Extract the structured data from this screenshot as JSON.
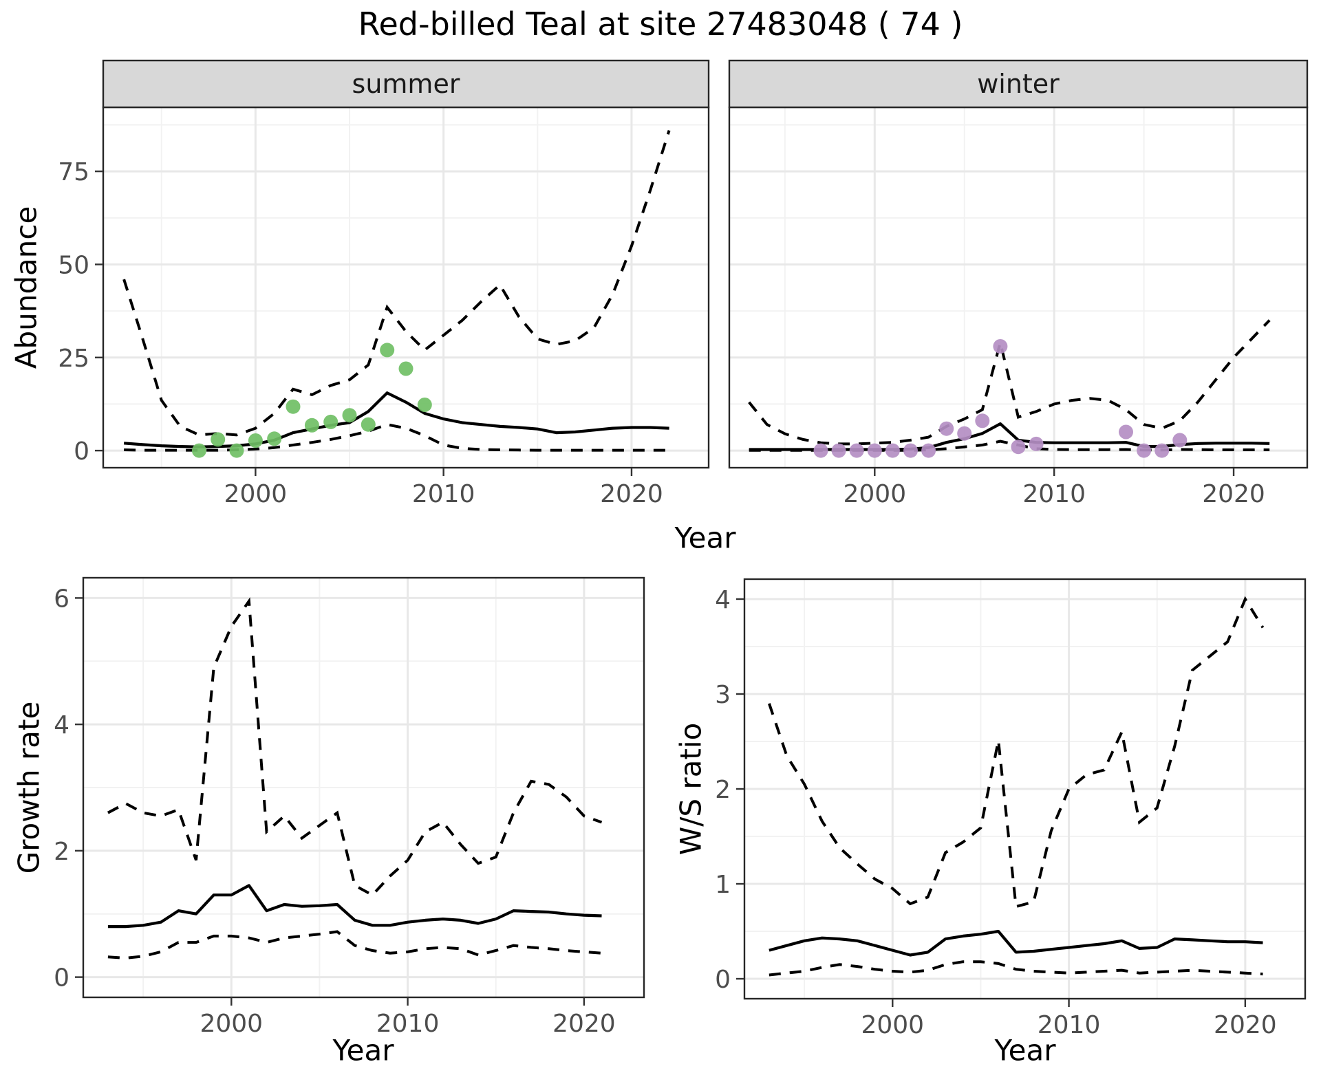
{
  "labels": {
    "title": "Red-billed Teal at site 27483048 ( 74 )",
    "x_axis": "Year",
    "y_abundance": "Abundance",
    "y_growth": "Growth rate",
    "y_ws": "W/S ratio",
    "facet_summer": "summer",
    "facet_winter": "winter"
  },
  "colors": {
    "observed_summer": "#70BF65",
    "observed_winter": "#B48EC3",
    "line": "#000000",
    "grid_major": "#E8E8E8",
    "grid_minor": "#F2F2F2",
    "strip_fill": "#D8D8D8",
    "panel_border": "#262626",
    "tick_text": "#4D4D4D",
    "strip_text": "#1A1A1A"
  },
  "chart_data": [
    {
      "id": "abundance_by_season",
      "type": "line",
      "title": "Red-billed Teal at site 27483048 ( 74 )",
      "xlabel": "Year",
      "ylabel": "Abundance",
      "x_ticks": [
        2000,
        2010,
        2020
      ],
      "x_minor": [
        1995,
        2005,
        2015
      ],
      "y_ticks": [
        0,
        25,
        50,
        75
      ],
      "y_minor": [
        12.5,
        37.5,
        62.5,
        87.5
      ],
      "xlim": [
        1991.9,
        2024.1
      ],
      "ylim": [
        -4.6,
        92.2
      ],
      "grid": true,
      "legend_position": "none",
      "years": [
        1993,
        1994,
        1995,
        1996,
        1997,
        1998,
        1999,
        2000,
        2001,
        2002,
        2003,
        2004,
        2005,
        2006,
        2007,
        2008,
        2009,
        2010,
        2011,
        2012,
        2013,
        2014,
        2015,
        2016,
        2017,
        2018,
        2019,
        2020,
        2021,
        2022
      ],
      "facets": [
        {
          "label": "summer",
          "point_color": "#70BF65",
          "mean": [
            2.0,
            1.6,
            1.3,
            1.1,
            1.0,
            1.1,
            1.3,
            1.8,
            2.8,
            4.8,
            5.8,
            6.8,
            7.5,
            10.5,
            15.5,
            13.0,
            10.0,
            8.5,
            7.5,
            7.0,
            6.5,
            6.2,
            5.8,
            4.8,
            5.0,
            5.5,
            6.0,
            6.2,
            6.2,
            6.0
          ],
          "upper": [
            46,
            30,
            13.5,
            6.5,
            4.2,
            4.6,
            4.2,
            6.0,
            10.0,
            16.5,
            15.0,
            17.5,
            19.0,
            23.0,
            38.5,
            32.0,
            27.0,
            31.0,
            35.0,
            40.0,
            44.5,
            36.0,
            30.0,
            28.5,
            29.5,
            33.0,
            42.0,
            55.0,
            70.0,
            86.0
          ],
          "lower": [
            0.2,
            0.1,
            0.1,
            0.1,
            0.1,
            0.1,
            0.2,
            0.4,
            0.8,
            1.5,
            2.2,
            3.0,
            4.0,
            5.2,
            7.0,
            6.0,
            4.0,
            1.5,
            0.6,
            0.3,
            0.2,
            0.15,
            0.1,
            0.1,
            0.1,
            0.1,
            0.1,
            0.1,
            0.1,
            0.1
          ],
          "obs_years": [
            1997,
            1998,
            1999,
            2000,
            2001,
            2002,
            2003,
            2004,
            2005,
            2006,
            2007,
            2008,
            2009
          ],
          "obs_values": [
            0,
            3.0,
            0,
            2.7,
            3.2,
            11.8,
            6.8,
            7.7,
            9.5,
            7.0,
            27.0,
            22.0,
            12.3
          ]
        },
        {
          "label": "winter",
          "point_color": "#B48EC3",
          "mean": [
            0.3,
            0.3,
            0.3,
            0.3,
            0.3,
            0.3,
            0.3,
            0.3,
            0.3,
            0.4,
            0.8,
            2.2,
            3.2,
            4.6,
            7.2,
            2.8,
            2.2,
            2.1,
            2.1,
            2.1,
            2.1,
            2.2,
            1.1,
            1.1,
            1.6,
            1.9,
            2.0,
            2.0,
            2.0,
            1.9
          ],
          "upper": [
            13,
            7,
            4.5,
            3.0,
            2.1,
            1.8,
            1.8,
            2.0,
            2.2,
            2.8,
            3.6,
            6.5,
            8.5,
            11.0,
            29.0,
            9.0,
            10.5,
            12.5,
            13.5,
            14.0,
            13.5,
            11.0,
            7.0,
            6.0,
            8.0,
            13.0,
            19.0,
            25.0,
            30.0,
            35.0
          ],
          "lower": [
            0.05,
            0.05,
            0.05,
            0.05,
            0.05,
            0.05,
            0.05,
            0.05,
            0.05,
            0.05,
            0.2,
            0.5,
            1.0,
            1.5,
            2.5,
            1.5,
            0.5,
            0.3,
            0.25,
            0.25,
            0.25,
            0.3,
            0.15,
            0.15,
            0.3,
            0.25,
            0.2,
            0.2,
            0.2,
            0.2
          ],
          "obs_years": [
            1997,
            1998,
            1999,
            2000,
            2001,
            2002,
            2003,
            2004,
            2005,
            2006,
            2007,
            2008,
            2009,
            2014,
            2015,
            2016,
            2017
          ],
          "obs_values": [
            0,
            0,
            0,
            0,
            0,
            0,
            0,
            5.9,
            4.6,
            8.0,
            28.0,
            1.0,
            1.8,
            5.0,
            0,
            0,
            2.8
          ]
        }
      ]
    },
    {
      "id": "growth_rate",
      "type": "line",
      "xlabel": "Year",
      "ylabel": "Growth rate",
      "x_ticks": [
        2000,
        2010,
        2020
      ],
      "x_minor": [
        1995,
        2005,
        2015
      ],
      "y_ticks": [
        0,
        2,
        4,
        6
      ],
      "y_minor": [
        1,
        3,
        5
      ],
      "xlim": [
        1991.6,
        2023.4
      ],
      "ylim": [
        -0.32,
        6.32
      ],
      "grid": true,
      "years": [
        1993,
        1994,
        1995,
        1996,
        1997,
        1998,
        1999,
        2000,
        2001,
        2002,
        2003,
        2004,
        2005,
        2006,
        2007,
        2008,
        2009,
        2010,
        2011,
        2012,
        2013,
        2014,
        2015,
        2016,
        2017,
        2018,
        2019,
        2020,
        2021
      ],
      "facets": [
        {
          "label": "",
          "mean": [
            0.8,
            0.8,
            0.82,
            0.87,
            1.05,
            1.0,
            1.3,
            1.3,
            1.45,
            1.05,
            1.15,
            1.12,
            1.13,
            1.15,
            0.9,
            0.82,
            0.82,
            0.87,
            0.9,
            0.92,
            0.9,
            0.85,
            0.92,
            1.05,
            1.04,
            1.03,
            1.0,
            0.98,
            0.97
          ],
          "upper": [
            2.6,
            2.75,
            2.6,
            2.55,
            2.65,
            1.85,
            4.9,
            5.55,
            5.95,
            2.3,
            2.55,
            2.2,
            2.4,
            2.6,
            1.45,
            1.3,
            1.6,
            1.85,
            2.3,
            2.45,
            2.1,
            1.8,
            1.9,
            2.6,
            3.1,
            3.05,
            2.85,
            2.55,
            2.45
          ],
          "lower": [
            0.32,
            0.3,
            0.33,
            0.4,
            0.55,
            0.55,
            0.65,
            0.65,
            0.62,
            0.55,
            0.62,
            0.65,
            0.68,
            0.72,
            0.5,
            0.42,
            0.38,
            0.4,
            0.45,
            0.47,
            0.45,
            0.35,
            0.42,
            0.5,
            0.47,
            0.45,
            0.42,
            0.4,
            0.38
          ]
        }
      ]
    },
    {
      "id": "winter_summer_ratio",
      "type": "line",
      "xlabel": "Year",
      "ylabel": "W/S ratio",
      "x_ticks": [
        2000,
        2010,
        2020
      ],
      "x_minor": [
        1995,
        2005,
        2015
      ],
      "y_ticks": [
        0,
        1,
        2,
        3,
        4
      ],
      "y_minor": [
        0.5,
        1.5,
        2.5,
        3.5
      ],
      "xlim": [
        1991.6,
        2023.4
      ],
      "ylim": [
        -0.21,
        4.21
      ],
      "grid": true,
      "years": [
        1993,
        1994,
        1995,
        1996,
        1997,
        1998,
        1999,
        2000,
        2001,
        2002,
        2003,
        2004,
        2005,
        2006,
        2007,
        2008,
        2009,
        2010,
        2011,
        2012,
        2013,
        2014,
        2015,
        2016,
        2017,
        2018,
        2019,
        2020,
        2021
      ],
      "facets": [
        {
          "label": "",
          "mean": [
            0.3,
            0.35,
            0.4,
            0.43,
            0.42,
            0.4,
            0.35,
            0.3,
            0.25,
            0.28,
            0.42,
            0.45,
            0.47,
            0.5,
            0.28,
            0.29,
            0.31,
            0.33,
            0.35,
            0.37,
            0.4,
            0.32,
            0.33,
            0.42,
            0.41,
            0.4,
            0.39,
            0.39,
            0.38
          ],
          "upper": [
            2.9,
            2.35,
            2.05,
            1.66,
            1.38,
            1.21,
            1.05,
            0.95,
            0.79,
            0.86,
            1.33,
            1.44,
            1.59,
            2.51,
            0.76,
            0.81,
            1.56,
            2.0,
            2.15,
            2.2,
            2.6,
            1.65,
            1.8,
            2.45,
            3.25,
            3.4,
            3.55,
            4.0,
            3.7
          ],
          "lower": [
            0.04,
            0.06,
            0.08,
            0.12,
            0.15,
            0.13,
            0.1,
            0.08,
            0.07,
            0.09,
            0.15,
            0.18,
            0.18,
            0.16,
            0.1,
            0.08,
            0.07,
            0.06,
            0.07,
            0.08,
            0.09,
            0.06,
            0.07,
            0.08,
            0.09,
            0.08,
            0.07,
            0.06,
            0.05
          ]
        }
      ]
    }
  ]
}
